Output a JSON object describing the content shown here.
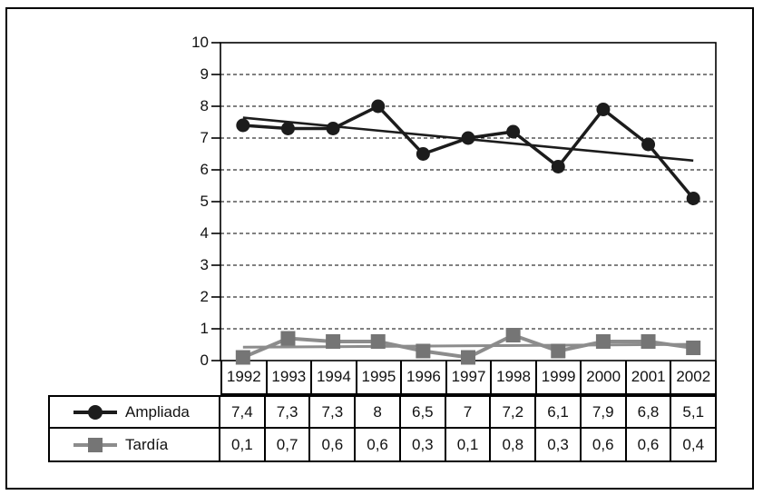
{
  "chart_data": {
    "type": "line",
    "title": "",
    "xlabel": "",
    "ylabel": "",
    "categories": [
      "1992",
      "1993",
      "1994",
      "1995",
      "1996",
      "1997",
      "1998",
      "1999",
      "2000",
      "2001",
      "2002"
    ],
    "series": [
      {
        "name": "Ampliada",
        "marker": "circle",
        "marker_color": "#1c1c1c",
        "line_color": "#1c1c1c",
        "values": [
          7.4,
          7.3,
          7.3,
          8,
          6.5,
          7,
          7.2,
          6.1,
          7.9,
          6.8,
          5.1
        ],
        "display": [
          "7,4",
          "7,3",
          "7,3",
          "8",
          "6,5",
          "7",
          "7,2",
          "6,1",
          "7,9",
          "6,8",
          "5,1"
        ]
      },
      {
        "name": "Tardía",
        "marker": "square",
        "marker_color": "#757575",
        "line_color": "#8c8c8c",
        "values": [
          0.1,
          0.7,
          0.6,
          0.6,
          0.3,
          0.1,
          0.8,
          0.3,
          0.6,
          0.6,
          0.4
        ],
        "display": [
          "0,1",
          "0,7",
          "0,6",
          "0,6",
          "0,3",
          "0,1",
          "0,8",
          "0,3",
          "0,6",
          "0,6",
          "0,4"
        ]
      }
    ],
    "trendlines": [
      {
        "series": "Ampliada",
        "start_value": 7.64,
        "end_value": 6.29,
        "color": "#1c1c1c"
      },
      {
        "series": "Tardía",
        "start_value": 0.42,
        "end_value": 0.51,
        "color": "#8c8c8c"
      }
    ],
    "y_axis": {
      "min": 0,
      "max": 10,
      "step": 1,
      "tick_labels": [
        "0",
        "1",
        "2",
        "3",
        "4",
        "5",
        "6",
        "7",
        "8",
        "9",
        "10"
      ]
    },
    "grid": {
      "horizontal": "dashed",
      "vertical": "none"
    },
    "legend": {
      "position": "table-left-column"
    }
  }
}
